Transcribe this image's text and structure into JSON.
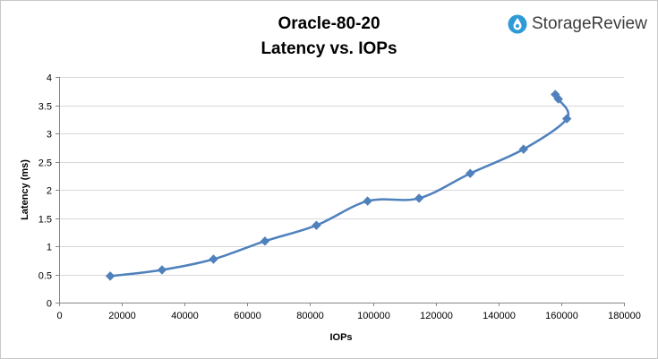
{
  "chart_data": {
    "type": "line",
    "title": "Oracle-80-20",
    "subtitle": "Latency vs. IOPs",
    "xlabel": "IOPs",
    "ylabel": "Latency (ms)",
    "xlim": [
      0,
      180000
    ],
    "ylim": [
      0,
      4
    ],
    "x_ticks": [
      "0",
      "20000",
      "40000",
      "60000",
      "80000",
      "100000",
      "120000",
      "140000",
      "160000",
      "180000"
    ],
    "y_ticks": [
      "0",
      "0.5",
      "1",
      "1.5",
      "2",
      "2.5",
      "3",
      "3.5",
      "4"
    ],
    "grid": true,
    "legend": "none",
    "series": [
      {
        "color": "#4f81bd",
        "smooth": true,
        "marker": "diamond",
        "points": [
          {
            "x": 16300,
            "y": 0.47
          },
          {
            "x": 32800,
            "y": 0.58
          },
          {
            "x": 49200,
            "y": 0.77
          },
          {
            "x": 65600,
            "y": 1.09
          },
          {
            "x": 82000,
            "y": 1.37
          },
          {
            "x": 98300,
            "y": 1.8
          },
          {
            "x": 114700,
            "y": 1.85
          },
          {
            "x": 131000,
            "y": 2.29
          },
          {
            "x": 148000,
            "y": 2.72
          },
          {
            "x": 161800,
            "y": 3.26
          },
          {
            "x": 159100,
            "y": 3.61
          },
          {
            "x": 158100,
            "y": 3.69
          }
        ]
      }
    ]
  },
  "branding": {
    "logo_text": "StorageReview",
    "logo_icon": "storagereview-drop-icon",
    "logo_color": "#2f9bd6"
  }
}
